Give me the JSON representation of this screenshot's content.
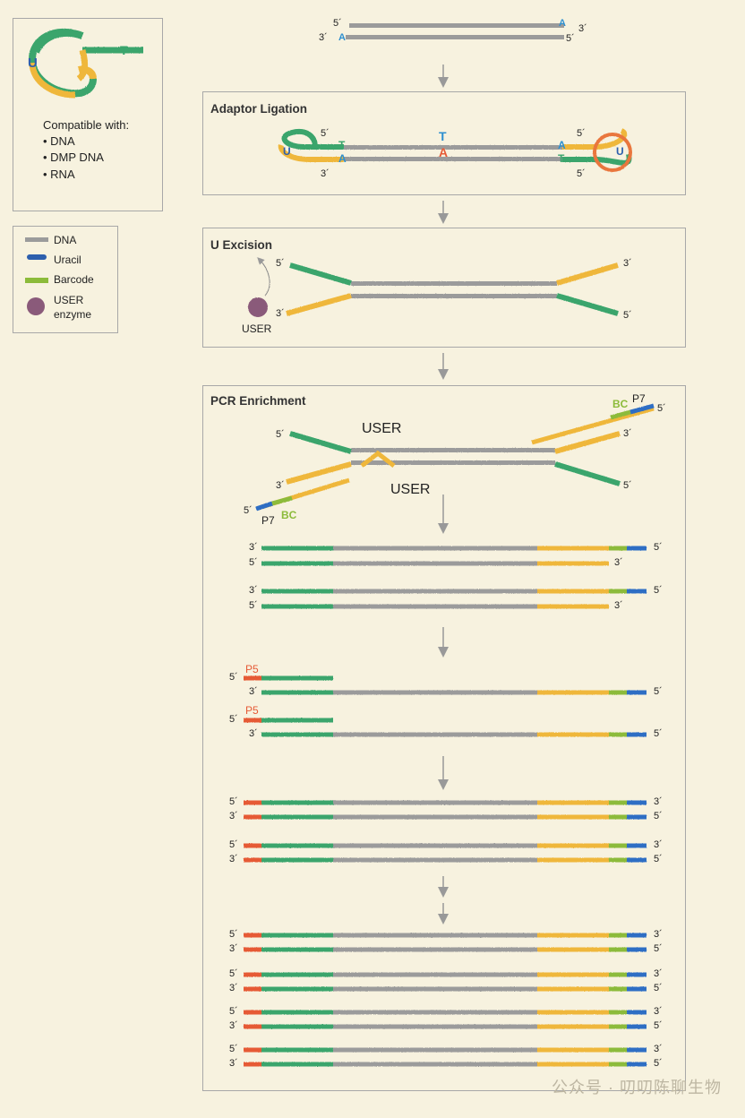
{
  "colors": {
    "dna": "#9b9b9b",
    "adapter_green": "#3aa56c",
    "adapter_yellow": "#efb73a",
    "uracil": "#2d5fad",
    "barcode": "#8cbb3a",
    "p7": "#2e6ec4",
    "p5": "#e65a36",
    "user_enzyme": "#8a5a7a",
    "bg": "#f7f2df"
  },
  "top_info": {
    "compatible_title": "Compatible with:",
    "items": [
      "• DNA",
      "• DMP DNA",
      "• RNA"
    ],
    "hairpin_u": "U",
    "hairpin_t": "T"
  },
  "legend": {
    "dna": "DNA",
    "uracil": "Uracil",
    "barcode": "Barcode",
    "user_line1": "USER",
    "user_line2": "enzyme"
  },
  "ends": {
    "five": "5´",
    "three": "3´"
  },
  "bases": {
    "A": "A",
    "T": "T",
    "U": "U"
  },
  "sections": {
    "ligation": {
      "title": "Adaptor Ligation"
    },
    "excision": {
      "title": "U Excision",
      "user": "USER"
    },
    "pcr": {
      "title": "PCR Enrichment",
      "user_a": "USER",
      "user_b": "USER",
      "p7": "P7",
      "bc": "BC",
      "p5": "P5"
    }
  },
  "watermark": "公众号 · 叨叨陈聊生物"
}
